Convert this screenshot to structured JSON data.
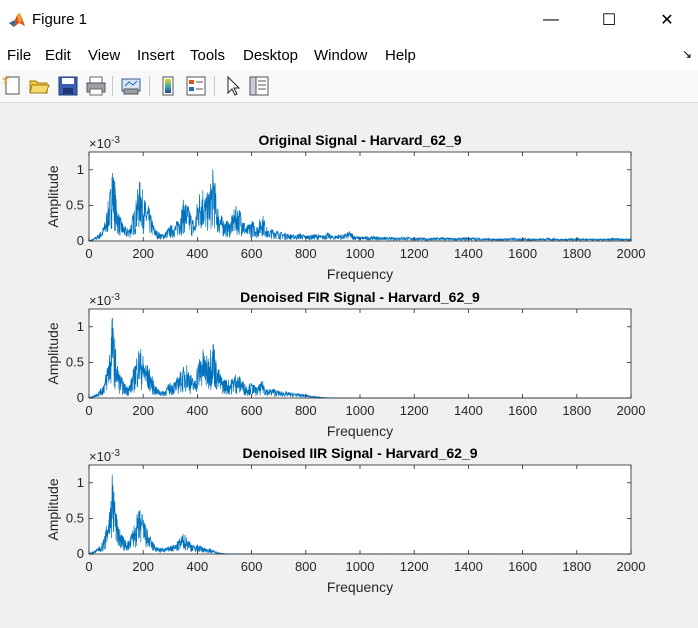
{
  "window": {
    "title": "Figure 1",
    "minimize_glyph": "—",
    "maximize_glyph": "☐",
    "close_glyph": "✕"
  },
  "menu": {
    "items": [
      "File",
      "Edit",
      "View",
      "Insert",
      "Tools",
      "Desktop",
      "Window",
      "Help"
    ],
    "dock_arrow": "↘"
  },
  "toolbar": {
    "icons": [
      "new-figure-icon",
      "open-file-icon",
      "save-icon",
      "print-icon",
      "link-plot-icon",
      "insert-colorbar-icon",
      "insert-legend-icon",
      "pointer-icon",
      "property-inspector-icon"
    ]
  },
  "colors": {
    "line": "#0072BD",
    "axes_bg": "#ffffff",
    "figure_bg": "#f0f0f0"
  },
  "chart_data": [
    {
      "type": "line",
      "title": "Original Signal - Harvard_62_9",
      "xlabel": "Frequency",
      "ylabel": "Amplitude",
      "exponent_label": "×10",
      "exponent_power": "-3",
      "xlim": [
        0,
        2000
      ],
      "ylim": [
        0,
        0.00125
      ],
      "xticks": [
        "0",
        "200",
        "400",
        "600",
        "800",
        "1000",
        "1200",
        "1400",
        "1600",
        "1800",
        "2000"
      ],
      "yticks": [
        "0",
        "0.5",
        "1"
      ],
      "series": [
        {
          "x": [
            0,
            10,
            20,
            30,
            40,
            50,
            60,
            70,
            80,
            85,
            90,
            95,
            100,
            110,
            120,
            130,
            140,
            150,
            160,
            170,
            180,
            190,
            200,
            210,
            220,
            230,
            240,
            250,
            260,
            270,
            280,
            290,
            300,
            320,
            340,
            350,
            360,
            370,
            380,
            390,
            400,
            410,
            420,
            430,
            440,
            450,
            460,
            470,
            480,
            490,
            500,
            520,
            540,
            560,
            580,
            600,
            620,
            640,
            660,
            680,
            700,
            720,
            740,
            760,
            780,
            800,
            820,
            840,
            860,
            880,
            900,
            920,
            940,
            960,
            980,
            1000,
            1050,
            1100,
            1150,
            1200,
            1250,
            1300,
            1350,
            1400,
            1450,
            1500,
            1550,
            1600,
            1650,
            1700,
            1750,
            1800,
            1850,
            1900,
            1950,
            2000
          ],
          "y": [
            1e-05,
            2e-05,
            4e-05,
            8e-05,
            0.00012,
            0.00018,
            0.0003,
            0.00055,
            0.0008,
            0.00125,
            0.00095,
            0.0009,
            0.0006,
            0.0004,
            0.0003,
            0.00022,
            0.00018,
            0.0002,
            0.00035,
            0.0005,
            0.00075,
            0.0009,
            0.00065,
            0.00055,
            0.0005,
            0.00035,
            0.00022,
            0.00015,
            0.00012,
            0.0001,
            0.00012,
            0.00018,
            0.00022,
            0.00025,
            0.00045,
            0.0006,
            0.00055,
            0.00048,
            0.00035,
            0.00025,
            0.0006,
            0.00075,
            0.0008,
            0.00065,
            0.0007,
            0.00085,
            0.0011,
            0.0006,
            0.00045,
            0.00035,
            0.0003,
            0.00028,
            0.0005,
            0.00045,
            0.0002,
            0.0003,
            0.00022,
            0.0004,
            0.00015,
            0.00018,
            0.00014,
            0.00012,
            0.0001,
            9e-05,
            0.00011,
            8e-05,
            9e-05,
            0.0001,
            8e-05,
            0.00012,
            7e-05,
            0.0001,
            9e-05,
            0.00014,
            8e-05,
            6e-05,
            7e-05,
            5e-05,
            6e-05,
            5e-05,
            4e-05,
            5e-05,
            4e-05,
            5e-05,
            4e-05,
            3e-05,
            4e-05,
            4e-05,
            3e-05,
            4e-05,
            3e-05,
            4e-05,
            3e-05,
            3e-05,
            4e-05,
            3e-05
          ]
        }
      ]
    },
    {
      "type": "line",
      "title": "Denoised FIR Signal - Harvard_62_9",
      "xlabel": "Frequency",
      "ylabel": "Amplitude",
      "exponent_label": "×10",
      "exponent_power": "-3",
      "xlim": [
        0,
        2000
      ],
      "ylim": [
        0,
        0.00125
      ],
      "xticks": [
        "0",
        "200",
        "400",
        "600",
        "800",
        "1000",
        "1200",
        "1400",
        "1600",
        "1800",
        "2000"
      ],
      "yticks": [
        "0",
        "0.5",
        "1"
      ],
      "series": [
        {
          "x": [
            0,
            10,
            20,
            30,
            40,
            50,
            60,
            70,
            80,
            85,
            90,
            95,
            100,
            110,
            120,
            130,
            140,
            150,
            160,
            170,
            180,
            190,
            200,
            210,
            220,
            230,
            240,
            250,
            260,
            270,
            280,
            290,
            300,
            320,
            340,
            350,
            360,
            370,
            380,
            390,
            400,
            410,
            420,
            430,
            440,
            450,
            460,
            470,
            480,
            490,
            500,
            520,
            540,
            560,
            580,
            600,
            620,
            640,
            660,
            680,
            700,
            720,
            740,
            760,
            780,
            800,
            820,
            840,
            860,
            880,
            900,
            1000,
            1200,
            1400,
            1600,
            1800,
            2000
          ],
          "y": [
            1e-05,
            2e-05,
            4e-05,
            8e-05,
            0.00012,
            0.00018,
            0.0003,
            0.00055,
            0.0008,
            0.00125,
            0.00095,
            0.0009,
            0.0006,
            0.0004,
            0.0003,
            0.00022,
            0.00018,
            0.0002,
            0.00035,
            0.0005,
            0.0007,
            0.00072,
            0.0006,
            0.0005,
            0.00045,
            0.00035,
            0.00022,
            0.00015,
            0.00012,
            0.0001,
            0.00012,
            0.00018,
            0.00022,
            0.00025,
            0.0004,
            0.00045,
            0.0005,
            0.0004,
            0.0003,
            0.00025,
            0.0005,
            0.0006,
            0.0007,
            0.0006,
            0.0006,
            0.00075,
            0.00085,
            0.0005,
            0.0004,
            0.0003,
            0.00028,
            0.00025,
            0.00035,
            0.0003,
            0.00018,
            0.00022,
            0.00015,
            0.00025,
            0.00012,
            0.00014,
            0.0001,
            9e-05,
            8e-05,
            7e-05,
            6e-05,
            5e-05,
            3e-05,
            2e-05,
            1e-05,
            5e-06,
            3e-06,
            2e-06,
            2e-06,
            2e-06,
            2e-06,
            2e-06,
            2e-06
          ]
        }
      ]
    },
    {
      "type": "line",
      "title": "Denoised IIR Signal - Harvard_62_9",
      "xlabel": "Frequency",
      "ylabel": "Amplitude",
      "exponent_label": "×10",
      "exponent_power": "-3",
      "xlim": [
        0,
        2000
      ],
      "ylim": [
        0,
        0.00125
      ],
      "xticks": [
        "0",
        "200",
        "400",
        "600",
        "800",
        "1000",
        "1200",
        "1400",
        "1600",
        "1800",
        "2000"
      ],
      "yticks": [
        "0",
        "0.5",
        "1"
      ],
      "series": [
        {
          "x": [
            0,
            10,
            20,
            30,
            40,
            50,
            60,
            70,
            80,
            85,
            90,
            95,
            100,
            110,
            120,
            130,
            140,
            150,
            160,
            170,
            180,
            190,
            200,
            210,
            220,
            230,
            240,
            250,
            260,
            270,
            280,
            290,
            300,
            320,
            340,
            350,
            360,
            370,
            380,
            390,
            400,
            410,
            420,
            430,
            440,
            450,
            460,
            470,
            480,
            490,
            500,
            520,
            540,
            600,
            800,
            1000,
            1200,
            1400,
            1600,
            1800,
            2000
          ],
          "y": [
            1e-05,
            2e-05,
            4e-05,
            8e-05,
            0.00012,
            0.00018,
            0.0003,
            0.00055,
            0.0008,
            0.00125,
            0.00095,
            0.0009,
            0.0006,
            0.0004,
            0.0003,
            0.00022,
            0.00018,
            0.0002,
            0.00035,
            0.00045,
            0.0006,
            0.00065,
            0.00055,
            0.0004,
            0.0003,
            0.00022,
            0.00015,
            0.0001,
            9e-05,
            8e-05,
            9e-05,
            0.0001,
            0.00012,
            0.00014,
            0.00025,
            0.0003,
            0.00025,
            0.0002,
            0.00015,
            0.00012,
            0.00014,
            0.00012,
            0.0001,
            9e-05,
            8e-05,
            7e-05,
            5e-05,
            3e-05,
            2e-05,
            1e-05,
            5e-06,
            3e-06,
            2e-06,
            1e-06,
            1e-06,
            1e-06,
            1e-06,
            1e-06,
            1e-06,
            1e-06,
            1e-06
          ]
        }
      ]
    }
  ]
}
